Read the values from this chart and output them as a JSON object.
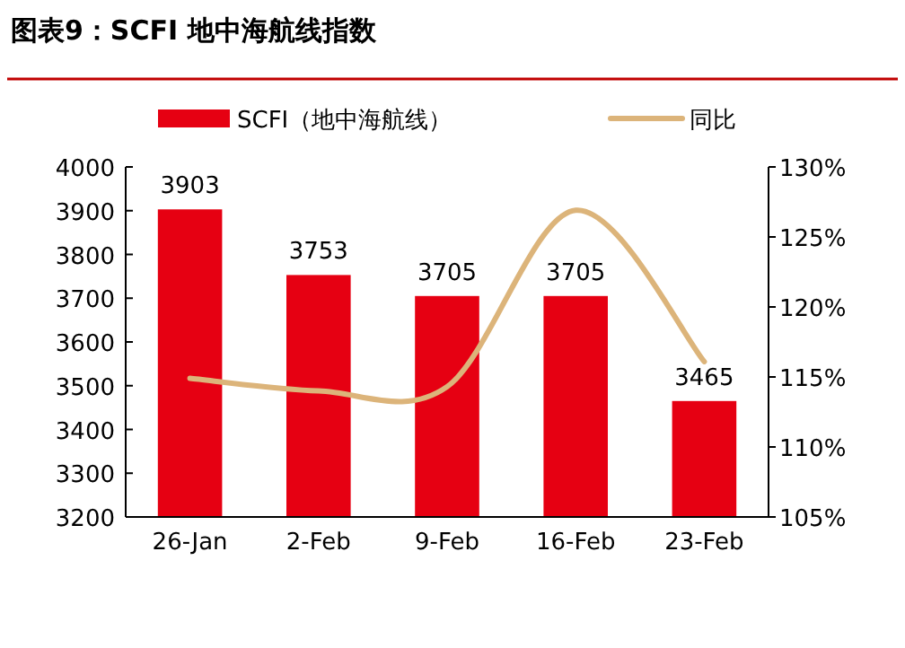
{
  "chart_data": {
    "type": "bar",
    "title": "图表9：SCFI 地中海航线指数",
    "categories": [
      "26-Jan",
      "2-Feb",
      "9-Feb",
      "16-Feb",
      "23-Feb"
    ],
    "series": [
      {
        "name": "SCFI（地中海航线）",
        "color": "#e60012",
        "values": [
          3903,
          3753,
          3705,
          3705,
          3465
        ],
        "value_labels": [
          "3903",
          "3753",
          "3705",
          "3705",
          "3465"
        ]
      },
      {
        "name": "同比",
        "type": "line",
        "axis": "y2",
        "color": "#dcb47a",
        "values": [
          114.9,
          114.0,
          114.3,
          126.9,
          116.1
        ]
      }
    ],
    "ylim": [
      3200,
      4000
    ],
    "yticks": [
      3200,
      3300,
      3400,
      3500,
      3600,
      3700,
      3800,
      3900,
      4000
    ],
    "y2lim": [
      105,
      130
    ],
    "y2ticks": [
      {
        "value": 105,
        "label": "105%"
      },
      {
        "value": 110,
        "label": "110%"
      },
      {
        "value": 115,
        "label": "115%"
      },
      {
        "value": 120,
        "label": "120%"
      },
      {
        "value": 125,
        "label": "125%"
      },
      {
        "value": 130,
        "label": "130%"
      }
    ],
    "legend": "top",
    "grid": false
  }
}
